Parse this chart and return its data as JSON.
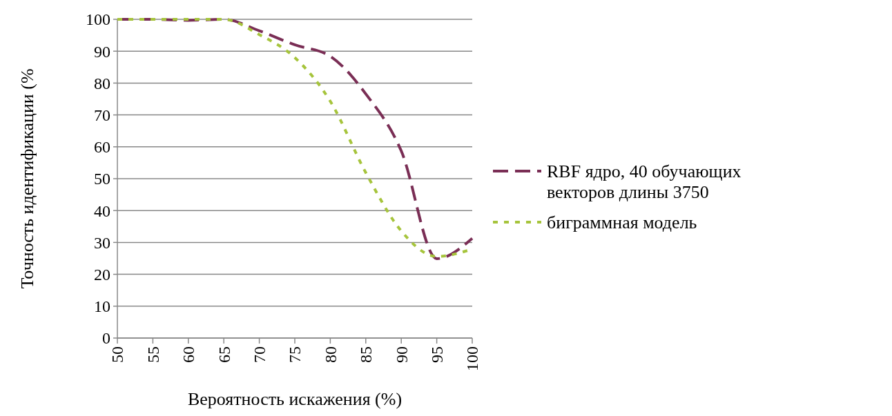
{
  "chart_data": {
    "type": "line",
    "xlabel": "Вероятность искажения (%)",
    "ylabel": "Точность идентификации (%",
    "x": [
      50,
      55,
      60,
      65,
      70,
      75,
      80,
      85,
      90,
      95,
      100
    ],
    "xlim": [
      50,
      100
    ],
    "xticks": [
      50,
      55,
      60,
      65,
      70,
      75,
      80,
      85,
      90,
      95,
      100
    ],
    "ylim": [
      0,
      100
    ],
    "yticks": [
      0,
      10,
      20,
      30,
      40,
      50,
      60,
      70,
      80,
      90,
      100
    ],
    "grid": "y",
    "legend": "right",
    "marker": "none",
    "series": [
      {
        "name": "RBF ядро, 40 обучающих векторов длины 3750",
        "color": "#7a2e55",
        "line_style": "dashed",
        "values": [
          100,
          100,
          99.7,
          100,
          96.4,
          92,
          88.4,
          76.6,
          58.7,
          24.9,
          31.3
        ]
      },
      {
        "name": "биграммная модель",
        "color": "#a6c43c",
        "line_style": "dotted",
        "values": [
          100,
          100,
          100,
          100,
          95.2,
          88,
          74.3,
          51.9,
          33.6,
          25.6,
          27.9
        ]
      }
    ]
  }
}
